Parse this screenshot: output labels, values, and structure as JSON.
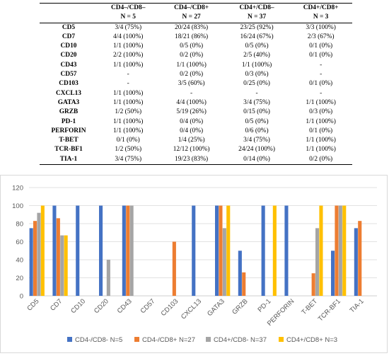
{
  "table": {
    "headers": [
      "",
      "CD4–/CD8–",
      "CD4–/CD8+",
      "CD4+/CD8–",
      "CD4+/CD8+"
    ],
    "subheaders": [
      "",
      "N = 5",
      "N = 27",
      "N = 37",
      "N = 3"
    ],
    "rows": [
      [
        "CD5",
        "3/4 (75%)",
        "20/24 (83%)",
        "23/25 (92%)",
        "3/3 (100%)"
      ],
      [
        "CD7",
        "4/4 (100%)",
        "18/21 (86%)",
        "16/24 (67%)",
        "2/3 (67%)"
      ],
      [
        "CD10",
        "1/1 (100%)",
        "0/5 (0%)",
        "0/5 (0%)",
        "0/1 (0%)"
      ],
      [
        "CD20",
        "2/2 (100%)",
        "0/2 (0%)",
        "2/5 (40%)",
        "0/1 (0%)"
      ],
      [
        "CD43",
        "1/1 (100%)",
        "1/1 (100%)",
        "1/1 (100%)",
        "-"
      ],
      [
        "CD57",
        "-",
        "0/2 (0%)",
        "0/3 (0%)",
        "-"
      ],
      [
        "CD103",
        "-",
        "3/5 (60%)",
        "0/25 (0%)",
        "0/1 (0%)"
      ],
      [
        "CXCL13",
        "1/1 (100%)",
        "-",
        "-",
        "-"
      ],
      [
        "GATA3",
        "1/1 (100%)",
        "4/4 (100%)",
        "3/4 (75%)",
        "1/1 (100%)"
      ],
      [
        "GRZB",
        "1/2 (50%)",
        "5/19 (26%)",
        "0/15 (0%)",
        "0/3 (0%)"
      ],
      [
        "PD-1",
        "1/1 (100%)",
        "0/4 (0%)",
        "0/5 (0%)",
        "1/1 (100%)"
      ],
      [
        "PERFORIN",
        "1/1 (100%)",
        "0/4 (0%)",
        "0/6 (0%)",
        "0/1 (0%)"
      ],
      [
        "T-BET",
        "0/1 (0%)",
        "1/4 (25%)",
        "3/4 (75%)",
        "1/1 (100%)"
      ],
      [
        "TCR-BF1",
        "1/2 (50%)",
        "12/12 (100%)",
        "24/24 (100%)",
        "1/1 (100%)"
      ],
      [
        "TIA-1",
        "3/4 (75%)",
        "19/23 (83%)",
        "0/14 (0%)",
        "0/2 (0%)"
      ]
    ]
  },
  "chart_data": {
    "type": "bar",
    "categories": [
      "CD5",
      "CD7",
      "CD10",
      "CD20",
      "CD43",
      "CD57",
      "CD103",
      "CXCL13",
      "GATA3",
      "GRZB",
      "PD-1",
      "PERFORIN",
      "T-BET",
      "TCR-BF1",
      "TIA-1"
    ],
    "series": [
      {
        "name": "CD4-/CD8- N=5",
        "color": "#4472c4",
        "values": [
          75,
          100,
          100,
          100,
          100,
          null,
          null,
          100,
          100,
          50,
          100,
          100,
          0,
          50,
          75
        ]
      },
      {
        "name": "CD4-/CD8+ N=27",
        "color": "#ed7d31",
        "values": [
          83,
          86,
          0,
          0,
          100,
          0,
          60,
          null,
          100,
          26,
          0,
          0,
          25,
          100,
          83
        ]
      },
      {
        "name": "CD4+/CD8- N=37",
        "color": "#a5a5a5",
        "values": [
          92,
          67,
          0,
          40,
          100,
          0,
          0,
          null,
          75,
          0,
          0,
          0,
          75,
          100,
          0
        ]
      },
      {
        "name": "CD4+/CD8+ N=3",
        "color": "#ffc000",
        "values": [
          100,
          67,
          0,
          0,
          null,
          null,
          0,
          null,
          100,
          0,
          100,
          0,
          100,
          100,
          0
        ]
      }
    ],
    "ylim": [
      0,
      120
    ],
    "yticks": [
      0,
      20,
      40,
      60,
      80,
      100,
      120
    ],
    "grid": true,
    "legend_position": "bottom"
  }
}
